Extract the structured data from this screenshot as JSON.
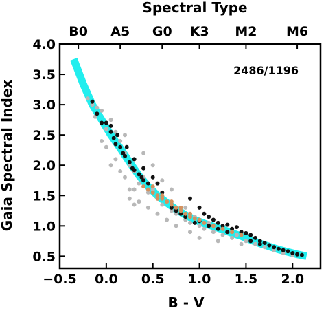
{
  "chart_data": {
    "type": "scatter",
    "xlabel": "B - V",
    "ylabel": "Gaia Spectral Index",
    "top_axis_label": "Spectral Type",
    "annotation": "2486/1196",
    "xlim": [
      -0.5,
      2.3
    ],
    "ylim": [
      0.3,
      4.0
    ],
    "x_ticks": [
      -0.5,
      0.0,
      0.5,
      1.0,
      1.5,
      2.0
    ],
    "x_tick_labels": [
      "−0.5",
      "0.0",
      "0.5",
      "1.0",
      "1.5",
      "2.0"
    ],
    "y_ticks": [
      0.5,
      1.0,
      1.5,
      2.0,
      2.5,
      3.0,
      3.5,
      4.0
    ],
    "y_tick_labels": [
      "0.5",
      "1.0",
      "1.5",
      "2.0",
      "2.5",
      "3.0",
      "3.5",
      "4.0"
    ],
    "top_ticks": [
      {
        "label": "B0",
        "x": -0.3
      },
      {
        "label": "A5",
        "x": 0.15
      },
      {
        "label": "G0",
        "x": 0.6
      },
      {
        "label": "K3",
        "x": 1.0
      },
      {
        "label": "M2",
        "x": 1.5
      },
      {
        "label": "M6",
        "x": 2.05
      }
    ],
    "fit_curve": {
      "color": "#22eeee",
      "x": [
        -0.35,
        -0.25,
        -0.15,
        -0.05,
        0.05,
        0.15,
        0.25,
        0.35,
        0.45,
        0.55,
        0.65,
        0.75,
        0.85,
        0.95,
        1.05,
        1.15,
        1.25,
        1.35,
        1.45,
        1.55,
        1.65,
        1.75,
        1.85,
        1.95,
        2.05,
        2.15
      ],
      "y": [
        3.75,
        3.35,
        3.0,
        2.75,
        2.5,
        2.28,
        2.05,
        1.83,
        1.65,
        1.5,
        1.38,
        1.27,
        1.18,
        1.1,
        1.04,
        0.99,
        0.94,
        0.88,
        0.83,
        0.77,
        0.71,
        0.66,
        0.61,
        0.57,
        0.53,
        0.5
      ]
    },
    "series": [
      {
        "color": "#b8b8b8",
        "points": [
          [
            -0.2,
            3.1
          ],
          [
            -0.15,
            3.0
          ],
          [
            -0.1,
            2.95
          ],
          [
            -0.12,
            2.8
          ],
          [
            -0.05,
            2.9
          ],
          [
            0.0,
            2.6
          ],
          [
            0.05,
            2.75
          ],
          [
            0.1,
            2.55
          ],
          [
            0.15,
            2.4
          ],
          [
            0.2,
            2.5
          ],
          [
            0.2,
            2.2
          ],
          [
            0.25,
            2.0
          ],
          [
            0.3,
            2.1
          ],
          [
            0.3,
            1.9
          ],
          [
            0.35,
            1.7
          ],
          [
            0.4,
            1.8
          ],
          [
            0.45,
            1.55
          ],
          [
            0.5,
            1.6
          ],
          [
            0.55,
            1.45
          ],
          [
            0.6,
            1.35
          ],
          [
            0.65,
            1.4
          ],
          [
            0.7,
            1.25
          ],
          [
            0.75,
            1.2
          ],
          [
            0.8,
            1.3
          ],
          [
            0.85,
            1.1
          ],
          [
            0.9,
            1.05
          ],
          [
            0.95,
            1.15
          ],
          [
            1.0,
            1.0
          ],
          [
            1.05,
            0.95
          ],
          [
            1.1,
            1.05
          ],
          [
            1.15,
            0.9
          ],
          [
            1.2,
            0.95
          ],
          [
            1.25,
            0.85
          ],
          [
            1.3,
            0.9
          ],
          [
            1.35,
            0.8
          ],
          [
            1.4,
            0.85
          ],
          [
            1.5,
            0.75
          ],
          [
            1.6,
            0.7
          ],
          [
            1.7,
            0.65
          ],
          [
            1.8,
            0.6
          ],
          [
            1.9,
            0.55
          ],
          [
            2.0,
            0.52
          ],
          [
            0.0,
            2.3
          ],
          [
            0.1,
            2.1
          ],
          [
            0.2,
            1.8
          ],
          [
            0.3,
            1.6
          ],
          [
            0.45,
            1.3
          ],
          [
            0.55,
            1.2
          ],
          [
            0.65,
            1.1
          ],
          [
            0.75,
            1.0
          ],
          [
            0.4,
            2.2
          ],
          [
            0.5,
            2.0
          ],
          [
            0.6,
            1.75
          ],
          [
            0.7,
            1.6
          ],
          [
            0.35,
            1.4
          ],
          [
            0.25,
            1.45
          ],
          [
            0.15,
            1.9
          ],
          [
            -0.05,
            2.4
          ],
          [
            0.05,
            2.0
          ],
          [
            0.3,
            1.35
          ],
          [
            0.25,
            1.6
          ],
          [
            1.0,
            0.8
          ],
          [
            1.2,
            0.75
          ],
          [
            1.45,
            0.7
          ],
          [
            0.85,
            1.3
          ],
          [
            0.9,
            0.9
          ]
        ]
      },
      {
        "color": "#111111",
        "points": [
          [
            -0.15,
            3.05
          ],
          [
            -0.1,
            2.85
          ],
          [
            -0.05,
            2.7
          ],
          [
            0.0,
            2.7
          ],
          [
            0.05,
            2.55
          ],
          [
            0.08,
            2.45
          ],
          [
            0.1,
            2.35
          ],
          [
            0.15,
            2.3
          ],
          [
            0.18,
            2.2
          ],
          [
            0.2,
            2.15
          ],
          [
            0.25,
            2.05
          ],
          [
            0.28,
            1.95
          ],
          [
            0.3,
            1.92
          ],
          [
            0.35,
            1.85
          ],
          [
            0.38,
            1.8
          ],
          [
            0.4,
            1.75
          ],
          [
            0.45,
            1.7
          ],
          [
            0.05,
            2.65
          ],
          [
            0.12,
            2.5
          ],
          [
            0.22,
            2.3
          ],
          [
            0.3,
            2.1
          ],
          [
            0.4,
            1.95
          ],
          [
            0.5,
            1.8
          ],
          [
            0.55,
            1.7
          ],
          [
            0.9,
            1.45
          ],
          [
            1.0,
            1.3
          ],
          [
            1.05,
            1.2
          ],
          [
            1.1,
            1.15
          ],
          [
            1.15,
            1.1
          ],
          [
            1.2,
            1.05
          ],
          [
            1.25,
            1.0
          ],
          [
            1.3,
            1.02
          ],
          [
            1.35,
            0.95
          ],
          [
            1.4,
            0.98
          ],
          [
            1.45,
            0.9
          ],
          [
            1.5,
            0.88
          ],
          [
            1.55,
            0.85
          ],
          [
            1.6,
            0.8
          ],
          [
            1.65,
            0.75
          ],
          [
            1.7,
            0.72
          ],
          [
            1.75,
            0.68
          ],
          [
            1.8,
            0.65
          ],
          [
            1.85,
            0.62
          ],
          [
            1.9,
            0.6
          ],
          [
            1.95,
            0.58
          ],
          [
            2.0,
            0.55
          ],
          [
            2.05,
            0.53
          ],
          [
            2.1,
            0.52
          ],
          [
            0.95,
            1.05
          ],
          [
            1.0,
            1.08
          ],
          [
            0.85,
            1.15
          ],
          [
            0.8,
            1.2
          ],
          [
            0.75,
            1.25
          ],
          [
            0.7,
            1.3
          ],
          [
            1.1,
            1.0
          ],
          [
            1.2,
            0.95
          ],
          [
            1.3,
            0.9
          ],
          [
            1.55,
            0.75
          ],
          [
            1.65,
            0.7
          ],
          [
            0.6,
            1.55
          ]
        ]
      },
      {
        "color": "#d4915e",
        "points": [
          [
            0.45,
            1.6
          ],
          [
            0.5,
            1.55
          ],
          [
            0.55,
            1.5
          ],
          [
            0.6,
            1.45
          ],
          [
            0.65,
            1.4
          ],
          [
            0.7,
            1.35
          ],
          [
            0.75,
            1.3
          ],
          [
            0.8,
            1.25
          ],
          [
            0.85,
            1.2
          ],
          [
            0.9,
            1.15
          ],
          [
            0.95,
            1.12
          ],
          [
            1.0,
            1.1
          ],
          [
            0.5,
            1.65
          ],
          [
            0.6,
            1.5
          ],
          [
            0.7,
            1.4
          ],
          [
            0.8,
            1.3
          ],
          [
            0.9,
            1.2
          ],
          [
            1.05,
            1.05
          ],
          [
            1.15,
            1.0
          ],
          [
            1.25,
            0.95
          ],
          [
            1.35,
            0.9
          ],
          [
            1.45,
            0.85
          ],
          [
            0.4,
            1.65
          ],
          [
            0.55,
            1.45
          ]
        ]
      }
    ]
  }
}
